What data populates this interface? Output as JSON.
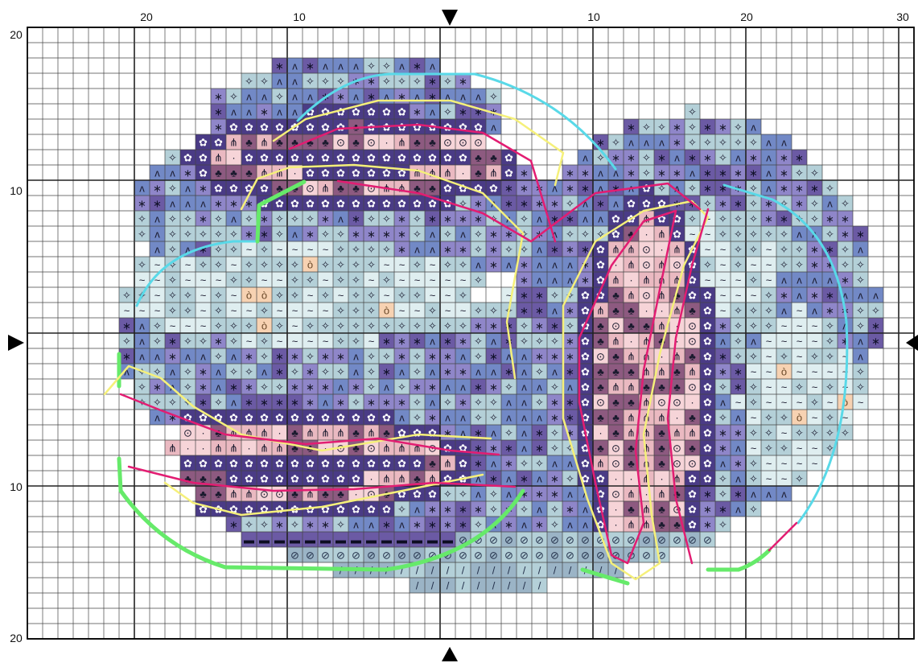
{
  "ruler": {
    "top": [
      "20",
      "10",
      "10",
      "20",
      "30"
    ],
    "left": [
      "20",
      "10",
      "10",
      "20"
    ]
  },
  "palette": {
    "light": "#dfeef0",
    "pale_blue": "#b4d0d8",
    "steel": "#9bb4c6",
    "blue": "#7289c6",
    "lavender": "#8f86c9",
    "purple": "#6b5aa4",
    "deep_purple": "#4a3b86",
    "plum": "#8d5a80",
    "pink": "#eab9c1",
    "light_pink": "#f6d4d8",
    "peach": "#f7d2b2",
    "outline_cyan": "#59d9e8",
    "outline_yellow": "#f5f07a",
    "outline_magenta": "#e21d72",
    "outline_green": "#66ea6a"
  },
  "stitch_symbols": {
    "tilde": "~",
    "sparkle": "✧",
    "caret": "ʌ",
    "asterisk": "∗",
    "flower": "✿",
    "dot": "·",
    "target": "⊙",
    "tree": "⋔",
    "club": "♣",
    "drop": "ò",
    "heart": "♥",
    "slash": "/",
    "oval": "⊘",
    "bar": "▬"
  }
}
